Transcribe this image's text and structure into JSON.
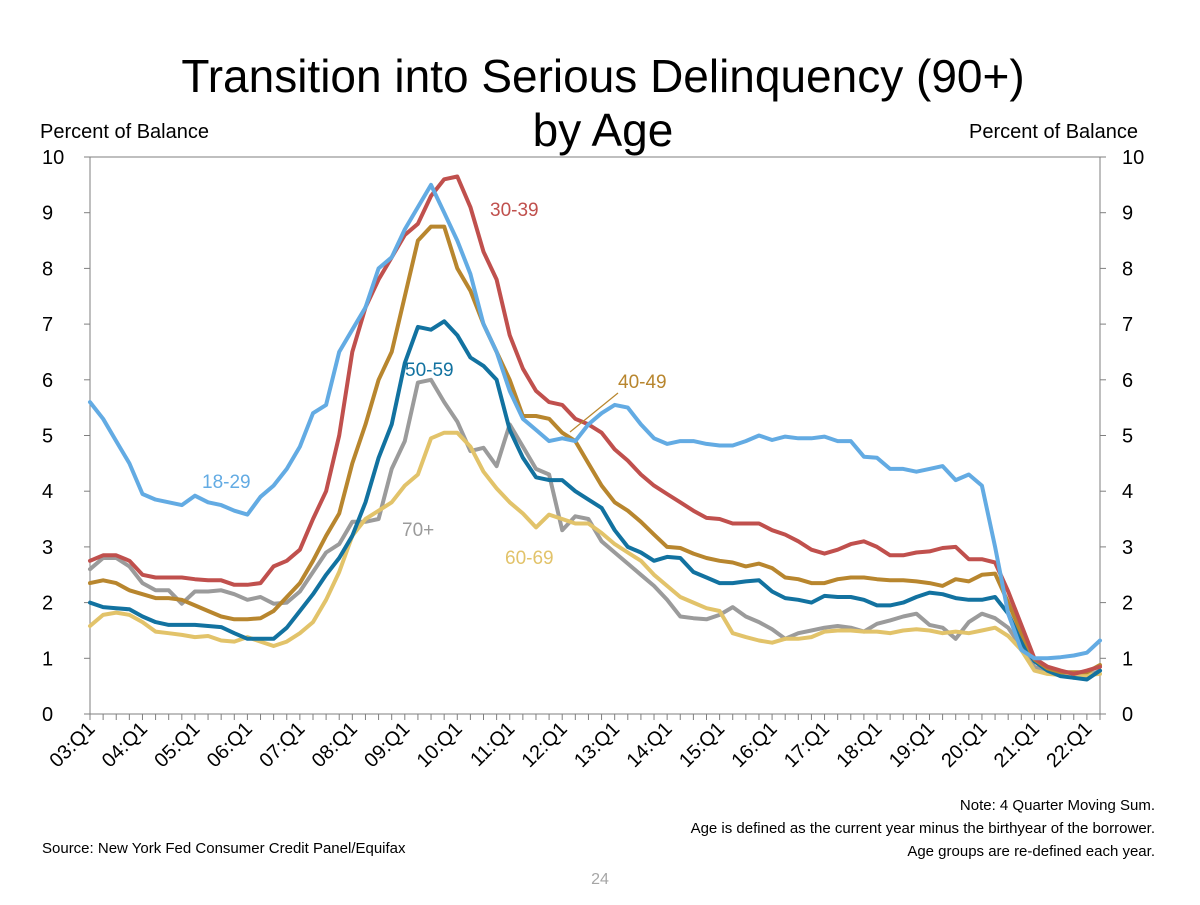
{
  "chart_data": {
    "type": "line",
    "title_line1": "Transition into Serious Delinquency (90+)",
    "title_line2": "by Age",
    "ylabel_left": "Percent of Balance",
    "ylabel_right": "Percent of Balance",
    "ylim": [
      0,
      10
    ],
    "yticks": [
      "0",
      "1",
      "2",
      "3",
      "4",
      "5",
      "6",
      "7",
      "8",
      "9",
      "10"
    ],
    "x_start": "03:Q1",
    "x_end": "22:Q2",
    "quarter_count": 78,
    "x_tick_labels": [
      "03:Q1",
      "04:Q1",
      "05:Q1",
      "06:Q1",
      "07:Q1",
      "08:Q1",
      "09:Q1",
      "10:Q1",
      "11:Q1",
      "12:Q1",
      "13:Q1",
      "14:Q1",
      "15:Q1",
      "16:Q1",
      "17:Q1",
      "18:Q1",
      "19:Q1",
      "20:Q1",
      "21:Q1",
      "22:Q1"
    ],
    "grid": false,
    "series": [
      {
        "name": "18-29",
        "color": "#63ABE3",
        "values": [
          5.6,
          5.3,
          4.9,
          4.5,
          3.95,
          3.85,
          3.8,
          3.75,
          3.92,
          3.8,
          3.75,
          3.65,
          3.58,
          3.9,
          4.1,
          4.4,
          4.8,
          5.4,
          5.55,
          6.5,
          6.9,
          7.3,
          8.0,
          8.2,
          8.7,
          9.1,
          9.5,
          9.0,
          8.5,
          7.9,
          7.0,
          6.5,
          5.8,
          5.3,
          5.1,
          4.9,
          4.95,
          4.9,
          5.2,
          5.4,
          5.55,
          5.5,
          5.2,
          4.95,
          4.85,
          4.9,
          4.9,
          4.85,
          4.82,
          4.82,
          4.9,
          5.0,
          4.92,
          4.98,
          4.95,
          4.95,
          4.98,
          4.9,
          4.9,
          4.62,
          4.6,
          4.4,
          4.4,
          4.35,
          4.4,
          4.45,
          4.2,
          4.3,
          4.1,
          3.0,
          1.8,
          1.15,
          1.0,
          1.0,
          1.02,
          1.05,
          1.1,
          1.32
        ]
      },
      {
        "name": "30-39",
        "color": "#C0504D",
        "values": [
          2.75,
          2.85,
          2.85,
          2.75,
          2.5,
          2.45,
          2.45,
          2.45,
          2.42,
          2.4,
          2.4,
          2.32,
          2.32,
          2.35,
          2.65,
          2.75,
          2.95,
          3.5,
          4.0,
          5.0,
          6.5,
          7.3,
          7.8,
          8.2,
          8.6,
          8.8,
          9.3,
          9.6,
          9.65,
          9.1,
          8.3,
          7.8,
          6.8,
          6.2,
          5.8,
          5.6,
          5.55,
          5.3,
          5.2,
          5.05,
          4.75,
          4.55,
          4.3,
          4.1,
          3.95,
          3.8,
          3.65,
          3.52,
          3.5,
          3.42,
          3.42,
          3.42,
          3.3,
          3.22,
          3.1,
          2.95,
          2.88,
          2.95,
          3.05,
          3.1,
          3.0,
          2.85,
          2.85,
          2.9,
          2.92,
          2.98,
          3.0,
          2.78,
          2.78,
          2.72,
          2.2,
          1.6,
          1.0,
          0.85,
          0.78,
          0.72,
          0.78,
          0.85
        ]
      },
      {
        "name": "40-49",
        "color": "#B8862E",
        "values": [
          2.35,
          2.4,
          2.35,
          2.22,
          2.15,
          2.08,
          2.08,
          2.05,
          1.95,
          1.85,
          1.75,
          1.7,
          1.7,
          1.72,
          1.85,
          2.1,
          2.35,
          2.75,
          3.2,
          3.6,
          4.5,
          5.2,
          6.0,
          6.5,
          7.5,
          8.5,
          8.75,
          8.75,
          8.0,
          7.6,
          7.0,
          6.5,
          6.0,
          5.35,
          5.35,
          5.3,
          5.05,
          4.9,
          4.5,
          4.1,
          3.8,
          3.65,
          3.45,
          3.22,
          3.0,
          2.98,
          2.88,
          2.8,
          2.75,
          2.72,
          2.65,
          2.7,
          2.62,
          2.45,
          2.42,
          2.35,
          2.35,
          2.42,
          2.45,
          2.45,
          2.42,
          2.4,
          2.4,
          2.38,
          2.35,
          2.3,
          2.42,
          2.38,
          2.5,
          2.52,
          2.0,
          1.45,
          0.98,
          0.82,
          0.75,
          0.75,
          0.75,
          0.88
        ]
      },
      {
        "name": "50-59",
        "color": "#1272A0",
        "values": [
          2.0,
          1.92,
          1.9,
          1.88,
          1.75,
          1.65,
          1.6,
          1.6,
          1.6,
          1.58,
          1.56,
          1.45,
          1.35,
          1.35,
          1.35,
          1.55,
          1.85,
          2.15,
          2.5,
          2.8,
          3.2,
          3.8,
          4.6,
          5.2,
          6.3,
          6.95,
          6.9,
          7.05,
          6.8,
          6.4,
          6.25,
          6.0,
          5.1,
          4.6,
          4.25,
          4.2,
          4.2,
          4.0,
          3.85,
          3.7,
          3.3,
          3.0,
          2.9,
          2.75,
          2.82,
          2.8,
          2.55,
          2.45,
          2.35,
          2.35,
          2.38,
          2.4,
          2.2,
          2.08,
          2.05,
          2.0,
          2.12,
          2.1,
          2.1,
          2.05,
          1.95,
          1.95,
          2.0,
          2.1,
          2.18,
          2.15,
          2.08,
          2.05,
          2.05,
          2.1,
          1.8,
          1.3,
          0.95,
          0.78,
          0.68,
          0.65,
          0.62,
          0.78
        ]
      },
      {
        "name": "60-69",
        "color": "#E2C36A",
        "values": [
          1.58,
          1.78,
          1.82,
          1.78,
          1.65,
          1.48,
          1.45,
          1.42,
          1.38,
          1.4,
          1.32,
          1.3,
          1.38,
          1.3,
          1.22,
          1.3,
          1.45,
          1.65,
          2.05,
          2.55,
          3.2,
          3.5,
          3.65,
          3.8,
          4.1,
          4.3,
          4.95,
          5.05,
          5.05,
          4.8,
          4.35,
          4.05,
          3.8,
          3.6,
          3.35,
          3.58,
          3.5,
          3.42,
          3.42,
          3.25,
          3.05,
          2.9,
          2.75,
          2.5,
          2.3,
          2.1,
          2.0,
          1.9,
          1.85,
          1.45,
          1.38,
          1.32,
          1.28,
          1.35,
          1.35,
          1.38,
          1.48,
          1.5,
          1.5,
          1.48,
          1.48,
          1.45,
          1.5,
          1.52,
          1.5,
          1.45,
          1.48,
          1.45,
          1.5,
          1.55,
          1.4,
          1.15,
          0.78,
          0.72,
          0.7,
          0.68,
          0.7,
          0.72
        ]
      },
      {
        "name": "70+",
        "color": "#9B9B9B",
        "values": [
          2.6,
          2.8,
          2.8,
          2.65,
          2.35,
          2.22,
          2.22,
          1.98,
          2.2,
          2.2,
          2.22,
          2.15,
          2.05,
          2.1,
          1.98,
          2.0,
          2.2,
          2.55,
          2.9,
          3.05,
          3.45,
          3.45,
          3.5,
          4.4,
          4.9,
          5.95,
          6.0,
          5.6,
          5.25,
          4.72,
          4.78,
          4.45,
          5.2,
          4.8,
          4.4,
          4.3,
          3.3,
          3.55,
          3.5,
          3.1,
          2.9,
          2.7,
          2.5,
          2.3,
          2.05,
          1.75,
          1.72,
          1.7,
          1.78,
          1.92,
          1.75,
          1.65,
          1.52,
          1.35,
          1.45,
          1.5,
          1.55,
          1.58,
          1.55,
          1.48,
          1.62,
          1.68,
          1.75,
          1.8,
          1.6,
          1.55,
          1.35,
          1.65,
          1.8,
          1.72,
          1.55,
          1.2,
          0.85,
          0.75,
          0.7,
          0.65,
          0.68,
          0.78
        ]
      }
    ],
    "annotations": {
      "label_18_29": "18-29",
      "label_30_39": "30-39",
      "label_40_49": "40-49",
      "label_50_59": "50-59",
      "label_60_69": "60-69",
      "label_70_plus": "70+"
    },
    "notes": {
      "line1": "Note: 4 Quarter Moving Sum.",
      "line2": "Age is defined as the current year minus the birthyear of the borrower.",
      "line3": "Age groups are re-defined each year."
    },
    "source": "Source: New York Fed Consumer Credit Panel/Equifax",
    "page_number": "24"
  }
}
